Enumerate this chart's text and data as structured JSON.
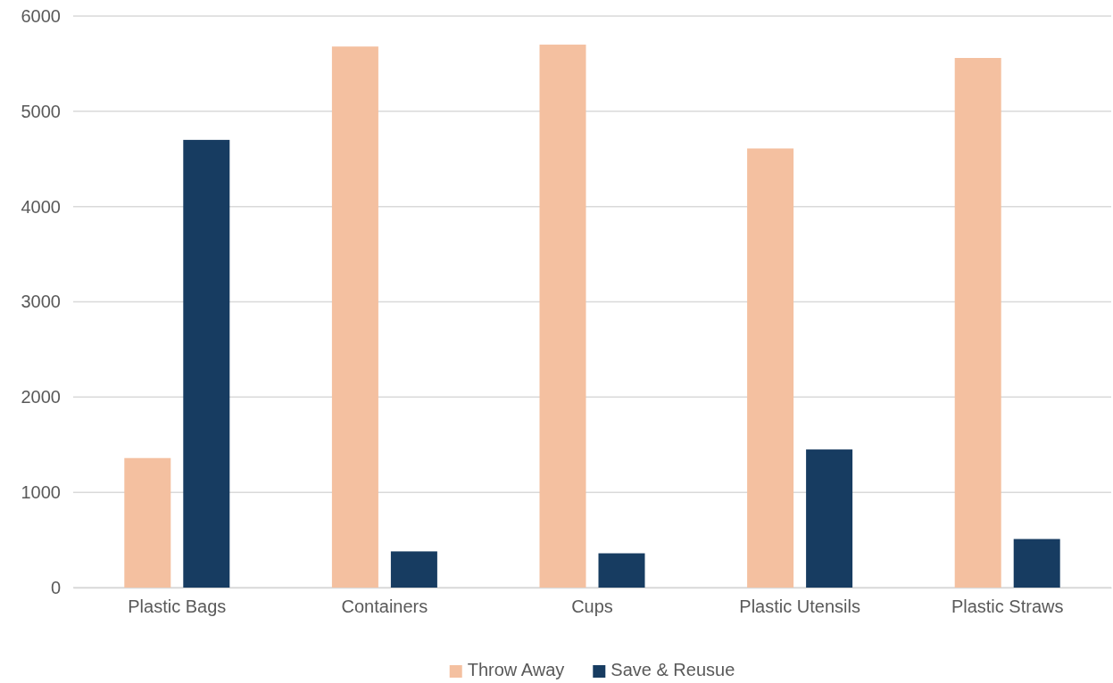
{
  "chart_data": {
    "type": "bar",
    "categories": [
      "Plastic Bags",
      "Containers",
      "Cups",
      "Plastic Utensils",
      "Plastic Straws"
    ],
    "series": [
      {
        "name": "Throw Away",
        "color": "#f4c0a0",
        "values": [
          1360,
          5680,
          5700,
          4610,
          5560
        ]
      },
      {
        "name": "Save & Reusue",
        "color": "#173c61",
        "values": [
          4700,
          380,
          360,
          1450,
          510
        ]
      }
    ],
    "ylim": [
      0,
      6000
    ],
    "yticks": [
      0,
      1000,
      2000,
      3000,
      4000,
      5000,
      6000
    ],
    "grid": "y",
    "legend": "bottom"
  }
}
